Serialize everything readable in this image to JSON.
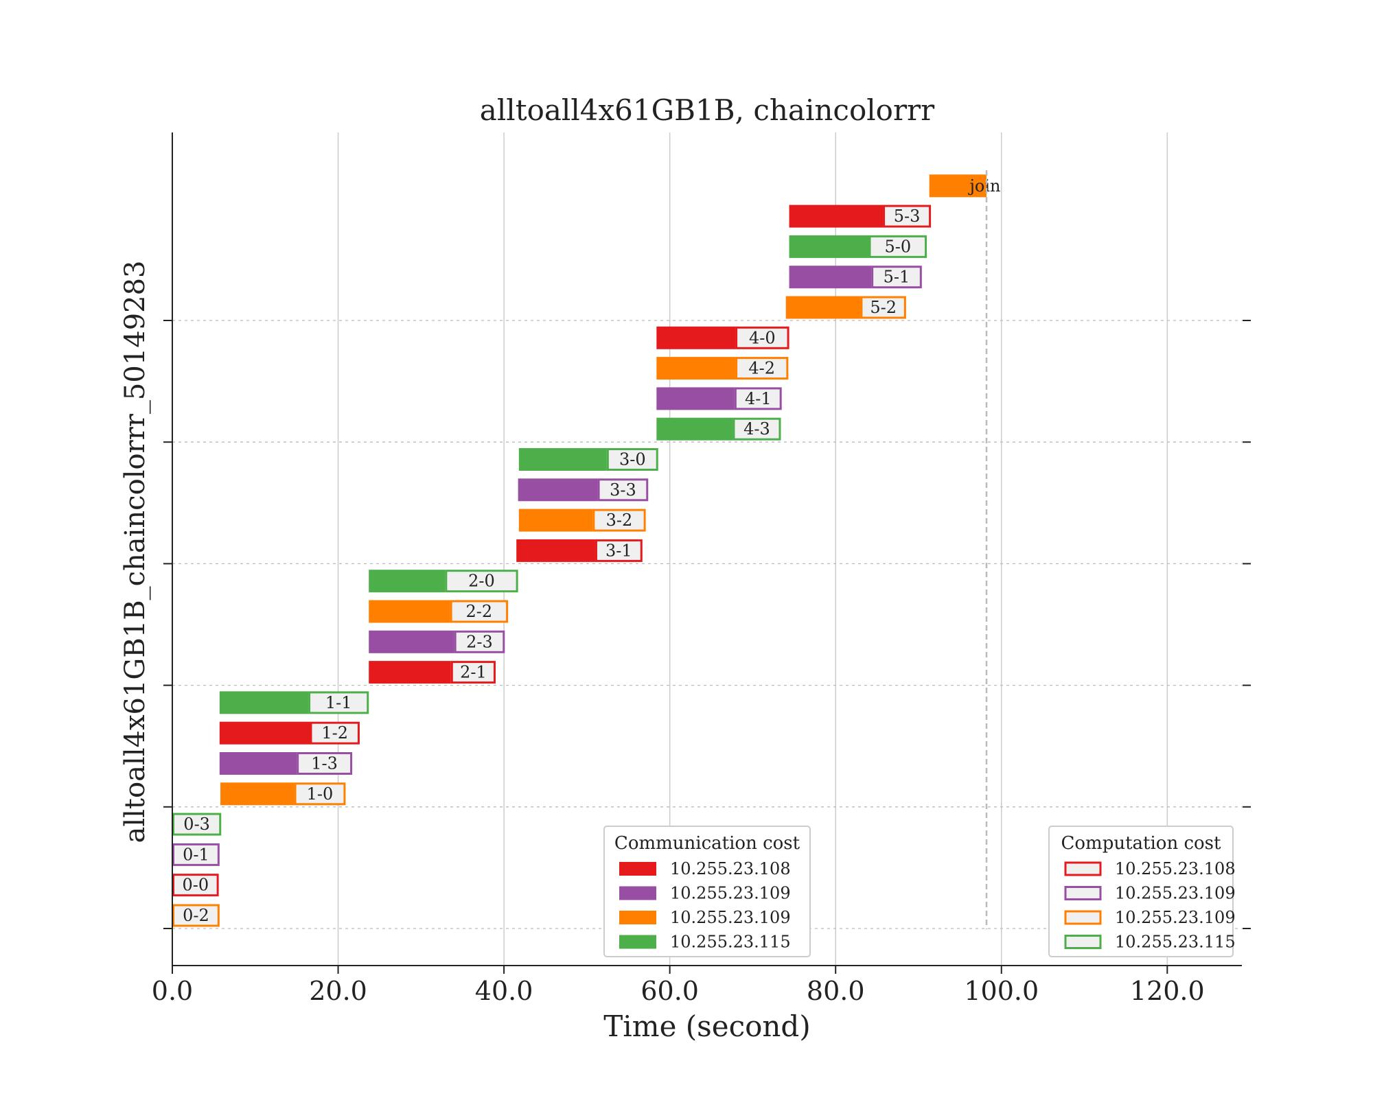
{
  "chart_data": {
    "type": "gantt",
    "title": "alltoall4x61GB1B, chaincolorrr",
    "xlabel": "Time (second)",
    "ylabel": "alltoall4x61GB1B_chaincolorrr_50149283",
    "xlim": [
      0,
      129
    ],
    "x_ticks": [
      "0.0",
      "20.0",
      "40.0",
      "60.0",
      "80.0",
      "100.0",
      "120.0"
    ],
    "x_tick_values": [
      0,
      20,
      40,
      60,
      80,
      100,
      120
    ],
    "grid": "x-solid, y-dashed",
    "join_line_x": 98.2,
    "hosts": [
      {
        "ip": "10.255.23.108",
        "color": "#e41a1c"
      },
      {
        "ip": "10.255.23.109",
        "color": "#984ea3"
      },
      {
        "ip": "10.255.23.109",
        "color": "#ff7f00"
      },
      {
        "ip": "10.255.23.115",
        "color": "#4daf4a"
      }
    ],
    "legends": [
      {
        "title": "Communication cost",
        "style": "filled",
        "placement": "lower-center"
      },
      {
        "title": "Computation cost",
        "style": "outlined",
        "placement": "lower-right"
      }
    ],
    "tasks": [
      {
        "label": "0-2",
        "host": 2,
        "comm": [
          0,
          0
        ],
        "comp": [
          0,
          5.7
        ]
      },
      {
        "label": "0-0",
        "host": 0,
        "comm": [
          0,
          0
        ],
        "comp": [
          0,
          5.6
        ]
      },
      {
        "label": "0-1",
        "host": 1,
        "comm": [
          0,
          0
        ],
        "comp": [
          0,
          5.7
        ]
      },
      {
        "label": "0-3",
        "host": 3,
        "comm": [
          0,
          0
        ],
        "comp": [
          0,
          5.9
        ]
      },
      {
        "label": "1-0",
        "host": 2,
        "comm": [
          5.8,
          14.7
        ],
        "comp": [
          14.7,
          20.9
        ]
      },
      {
        "label": "1-3",
        "host": 1,
        "comm": [
          5.7,
          15.0
        ],
        "comp": [
          15.0,
          21.7
        ]
      },
      {
        "label": "1-2",
        "host": 0,
        "comm": [
          5.7,
          16.6
        ],
        "comp": [
          16.6,
          22.6
        ]
      },
      {
        "label": "1-1",
        "host": 3,
        "comm": [
          5.7,
          16.4
        ],
        "comp": [
          16.4,
          23.7
        ]
      },
      {
        "label": "2-1",
        "host": 0,
        "comm": [
          23.7,
          33.6
        ],
        "comp": [
          33.6,
          39.0
        ]
      },
      {
        "label": "2-3",
        "host": 1,
        "comm": [
          23.7,
          34.0
        ],
        "comp": [
          34.0,
          40.1
        ]
      },
      {
        "label": "2-2",
        "host": 2,
        "comm": [
          23.7,
          33.5
        ],
        "comp": [
          33.5,
          40.5
        ]
      },
      {
        "label": "2-0",
        "host": 3,
        "comm": [
          23.7,
          32.9
        ],
        "comp": [
          32.9,
          41.7
        ]
      },
      {
        "label": "3-1",
        "host": 0,
        "comm": [
          41.5,
          51.0
        ],
        "comp": [
          51.0,
          56.7
        ]
      },
      {
        "label": "3-2",
        "host": 2,
        "comm": [
          41.8,
          50.7
        ],
        "comp": [
          50.7,
          57.1
        ]
      },
      {
        "label": "3-3",
        "host": 1,
        "comm": [
          41.7,
          51.3
        ],
        "comp": [
          51.3,
          57.4
        ]
      },
      {
        "label": "3-0",
        "host": 3,
        "comm": [
          41.8,
          52.4
        ],
        "comp": [
          52.4,
          58.6
        ]
      },
      {
        "label": "4-3",
        "host": 3,
        "comm": [
          58.4,
          67.6
        ],
        "comp": [
          67.6,
          73.4
        ]
      },
      {
        "label": "4-1",
        "host": 1,
        "comm": [
          58.4,
          67.8
        ],
        "comp": [
          67.8,
          73.5
        ]
      },
      {
        "label": "4-2",
        "host": 2,
        "comm": [
          58.4,
          67.9
        ],
        "comp": [
          67.9,
          74.3
        ]
      },
      {
        "label": "4-0",
        "host": 0,
        "comm": [
          58.4,
          67.9
        ],
        "comp": [
          67.9,
          74.4
        ]
      },
      {
        "label": "5-2",
        "host": 2,
        "comm": [
          74.0,
          83.0
        ],
        "comp": [
          83.0,
          88.5
        ]
      },
      {
        "label": "5-1",
        "host": 1,
        "comm": [
          74.4,
          84.3
        ],
        "comp": [
          84.3,
          90.4
        ]
      },
      {
        "label": "5-0",
        "host": 3,
        "comm": [
          74.4,
          84.0
        ],
        "comp": [
          84.0,
          91.0
        ]
      },
      {
        "label": "5-3",
        "host": 0,
        "comm": [
          74.4,
          85.7
        ],
        "comp": [
          85.7,
          91.5
        ]
      },
      {
        "label": "join",
        "host": 2,
        "comm": [
          91.3,
          98.2
        ],
        "comp": [
          98.2,
          98.2
        ]
      }
    ]
  }
}
